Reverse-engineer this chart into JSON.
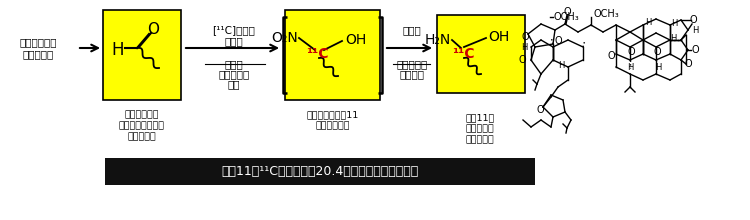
{
  "bg_color": "#ffffff",
  "yellow": "#FFFF00",
  "black": "#000000",
  "red": "#CC0000",
  "dark_bg": "#111111",
  "fig_width": 7.5,
  "fig_height": 2.2,
  "dpi": 100,
  "footer_text": "炭甙11（¹¹C、半減期：20.4分）を用いる合成反応",
  "label_step1": "エリブリンの\n中心骨格を有する\nアルデヒド",
  "label_step2": "ニトロ基と炭素11\nを持つ中間体",
  "label_step3": "炭甙11で\n標識された\nエリブリン",
  "label_intro_1": "エリブリンの",
  "label_intro_2": "合成中間体",
  "reagent1_line1": "[¹¹C]ニトロ",
  "reagent1_line2": "メタン",
  "reagent1_bot1": "ニトロ",
  "reagent1_bot2": "アルドール",
  "reagent1_bot3": "反応",
  "reagent2_top": "還元剤",
  "reagent2_bot1": "ニトロ基の",
  "reagent2_bot2": "還元反応"
}
